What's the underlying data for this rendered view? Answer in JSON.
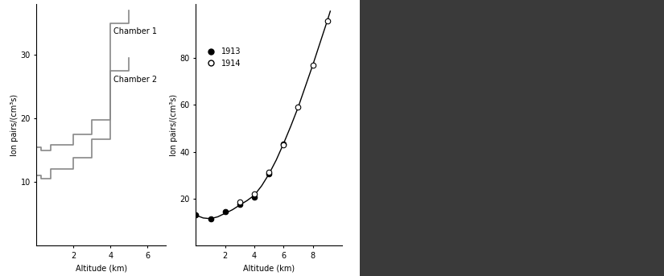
{
  "chart_data": [
    {
      "type": "line",
      "line_style": "steps",
      "x_label": "Altitude (km)",
      "y_label": "Ion pairs/(cm³s)",
      "x": [
        0,
        0.25,
        0.75,
        2,
        3,
        4,
        5
      ],
      "series": [
        {
          "name": "Chamber 1",
          "color": "#888888",
          "values": [
            15.5,
            15.0,
            15.8,
            17.5,
            19.8,
            35.0,
            37.0
          ]
        },
        {
          "name": "Chamber 2",
          "color": "#888888",
          "values": [
            11.0,
            10.5,
            12.0,
            13.8,
            16.8,
            27.5,
            29.5
          ]
        }
      ],
      "xlim": [
        0,
        7
      ],
      "xticks": [
        2,
        4,
        6
      ],
      "ylim": [
        0,
        38
      ],
      "yticks": [
        10,
        20,
        30
      ]
    },
    {
      "type": "scatter",
      "x_label": "Altitude (km)",
      "y_label": "Ion pairs/(cm³s)",
      "series": [
        {
          "type": "line",
          "color": "#000000",
          "line_style": "solid",
          "x": [
            0,
            0.5,
            1,
            1.5,
            2,
            2.5,
            3,
            3.5,
            4,
            4.5,
            5,
            5.5,
            6,
            6.5,
            7,
            7.5,
            8,
            8.5,
            9,
            9.2
          ],
          "values": [
            13,
            11.8,
            11.5,
            12.3,
            13.8,
            15.3,
            17.3,
            19.2,
            21.5,
            25.5,
            30.5,
            36.5,
            43.5,
            51,
            59,
            68,
            77,
            86.5,
            96,
            100
          ]
        },
        {
          "name": "1913",
          "type": "scatter",
          "color": "#000000",
          "marker": "filled_circle",
          "x": [
            0,
            1,
            2,
            3,
            4,
            5,
            6
          ],
          "values": [
            13,
            11.5,
            14.4,
            17.5,
            20.7,
            30.5,
            43.5
          ]
        },
        {
          "name": "1914",
          "type": "scatter",
          "color": "#000000",
          "marker": "open_circle",
          "x": [
            3,
            4,
            5,
            6,
            7,
            8,
            9
          ],
          "values": [
            18.5,
            22,
            31.2,
            43,
            59,
            77,
            96
          ]
        }
      ],
      "legend": "upper left",
      "xlim": [
        0,
        10
      ],
      "xticks": [
        2,
        4,
        6,
        8
      ],
      "ylim": [
        0,
        103
      ],
      "yticks": [
        20,
        40,
        60,
        80
      ]
    }
  ]
}
